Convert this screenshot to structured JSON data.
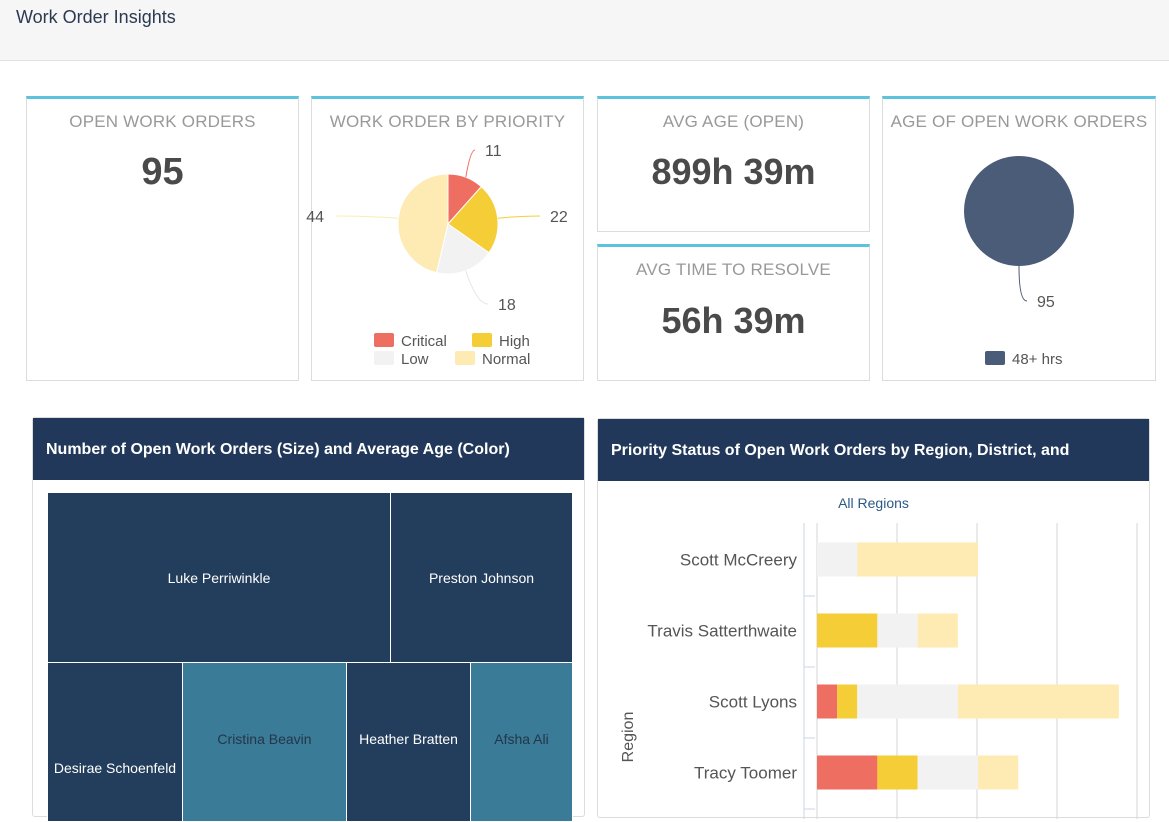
{
  "header": {
    "title": "Work Order Insights"
  },
  "kpis": {
    "open_work_orders": {
      "title": "OPEN WORK ORDERS",
      "value": "95"
    },
    "avg_age": {
      "title": "AVG AGE (OPEN)",
      "value": "899h 39m"
    },
    "avg_resolve": {
      "title": "AVG TIME TO RESOLVE",
      "value": "56h 39m"
    }
  },
  "priority_pie": {
    "title": "WORK ORDER BY PRIORITY"
  },
  "age_pie": {
    "title": "AGE OF OPEN WORK ORDERS"
  },
  "treemap": {
    "title": "Number of Open Work Orders (Size) and Average Age (Color)",
    "items": [
      "Luke Perriwinkle",
      "Preston Johnson",
      "Desirae Schoenfeld",
      "Cristina Beavin",
      "Heather Bratten",
      "Afsha Ali"
    ]
  },
  "bar_panel": {
    "title": "Priority Status of Open Work Orders by Region, District, and",
    "drill_label": "All Regions"
  },
  "chart_data": [
    {
      "type": "pie",
      "title": "WORK ORDER BY PRIORITY",
      "categories": [
        "Critical",
        "High",
        "Low",
        "Normal"
      ],
      "values": [
        11,
        22,
        18,
        44
      ],
      "colors": [
        "#ee6e62",
        "#f5cd36",
        "#f2f2f2",
        "#fdebb3"
      ],
      "legend": "bottom"
    },
    {
      "type": "pie",
      "title": "AGE OF OPEN WORK ORDERS",
      "categories": [
        "48+ hrs"
      ],
      "values": [
        95
      ],
      "colors": [
        "#4a5c77"
      ],
      "legend": "bottom"
    },
    {
      "type": "bar",
      "orientation": "horizontal",
      "stacked": true,
      "ylabel": "Region",
      "categories": [
        "Scott McCreery",
        "Travis Satterthwaite",
        "Scott Lyons",
        "Tracy Toomer"
      ],
      "series": [
        {
          "name": "Critical",
          "values": [
            0,
            0,
            1,
            3
          ],
          "color": "#ee6e62"
        },
        {
          "name": "High",
          "values": [
            0,
            3,
            1,
            2
          ],
          "color": "#f5cd36"
        },
        {
          "name": "Low",
          "values": [
            2,
            2,
            5,
            3
          ],
          "color": "#f2f2f2"
        },
        {
          "name": "Normal",
          "values": [
            6,
            2,
            8,
            2
          ],
          "color": "#fdebb3"
        }
      ],
      "grid": true
    }
  ]
}
